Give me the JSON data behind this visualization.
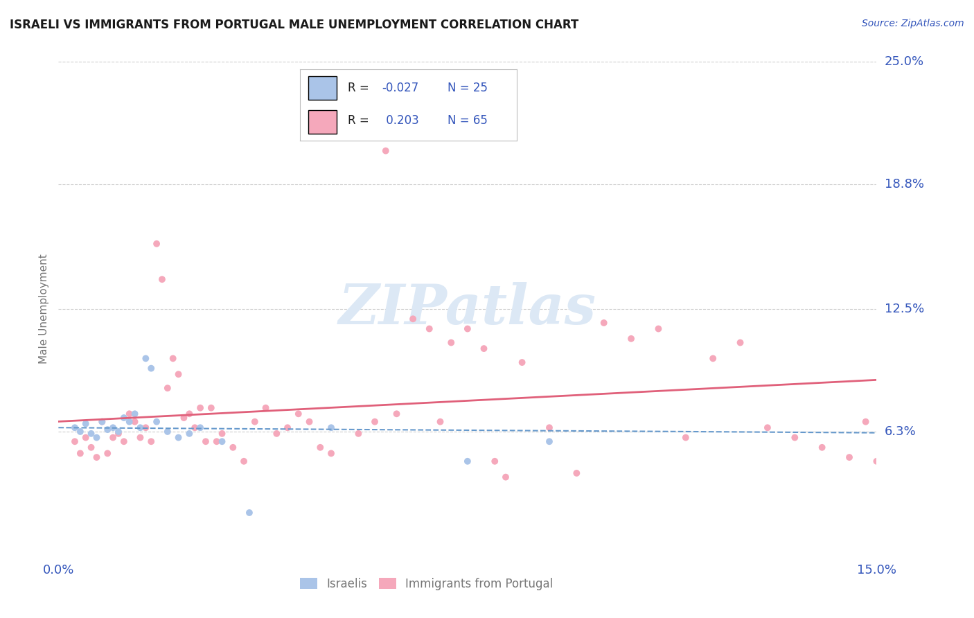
{
  "title": "ISRAELI VS IMMIGRANTS FROM PORTUGAL MALE UNEMPLOYMENT CORRELATION CHART",
  "source": "Source: ZipAtlas.com",
  "ylabel": "Male Unemployment",
  "xlim": [
    0.0,
    0.15
  ],
  "ylim": [
    0.0,
    0.25
  ],
  "ytick_labels": [
    "6.3%",
    "12.5%",
    "18.8%",
    "25.0%"
  ],
  "ytick_values": [
    0.063,
    0.125,
    0.188,
    0.25
  ],
  "xtick_labels": [
    "0.0%",
    "15.0%"
  ],
  "xtick_values": [
    0.0,
    0.15
  ],
  "color_israeli": "#aac4e8",
  "color_portugal": "#f5a8bb",
  "color_trend_israeli": "#6699cc",
  "color_trend_portugal": "#e0607a",
  "color_blue": "#3355bb",
  "color_grey_text": "#777777",
  "background_color": "#ffffff",
  "r_israeli": -0.027,
  "n_israeli": 25,
  "r_portugal": 0.203,
  "n_portugal": 65,
  "israeli_x": [
    0.003,
    0.004,
    0.005,
    0.006,
    0.007,
    0.008,
    0.009,
    0.01,
    0.011,
    0.012,
    0.013,
    0.014,
    0.015,
    0.016,
    0.017,
    0.018,
    0.02,
    0.022,
    0.024,
    0.026,
    0.03,
    0.035,
    0.05,
    0.075,
    0.09
  ],
  "israeli_y": [
    0.065,
    0.063,
    0.067,
    0.062,
    0.06,
    0.068,
    0.064,
    0.065,
    0.063,
    0.07,
    0.068,
    0.072,
    0.065,
    0.1,
    0.095,
    0.068,
    0.063,
    0.06,
    0.062,
    0.065,
    0.058,
    0.022,
    0.065,
    0.048,
    0.058
  ],
  "portugal_x": [
    0.003,
    0.004,
    0.005,
    0.006,
    0.007,
    0.008,
    0.009,
    0.01,
    0.011,
    0.012,
    0.013,
    0.014,
    0.015,
    0.016,
    0.017,
    0.018,
    0.019,
    0.02,
    0.021,
    0.022,
    0.023,
    0.024,
    0.025,
    0.026,
    0.027,
    0.028,
    0.029,
    0.03,
    0.032,
    0.034,
    0.036,
    0.038,
    0.04,
    0.042,
    0.044,
    0.046,
    0.048,
    0.05,
    0.055,
    0.06,
    0.065,
    0.07,
    0.075,
    0.08,
    0.085,
    0.09,
    0.095,
    0.1,
    0.105,
    0.11,
    0.115,
    0.12,
    0.125,
    0.13,
    0.135,
    0.14,
    0.145,
    0.148,
    0.15,
    0.058,
    0.062,
    0.068,
    0.072,
    0.078,
    0.082
  ],
  "portugal_y": [
    0.058,
    0.052,
    0.06,
    0.055,
    0.05,
    0.068,
    0.052,
    0.06,
    0.062,
    0.058,
    0.072,
    0.068,
    0.06,
    0.065,
    0.058,
    0.158,
    0.14,
    0.085,
    0.1,
    0.092,
    0.07,
    0.072,
    0.065,
    0.075,
    0.058,
    0.075,
    0.058,
    0.062,
    0.055,
    0.048,
    0.068,
    0.075,
    0.062,
    0.065,
    0.072,
    0.068,
    0.055,
    0.052,
    0.062,
    0.205,
    0.12,
    0.068,
    0.115,
    0.048,
    0.098,
    0.065,
    0.042,
    0.118,
    0.11,
    0.115,
    0.06,
    0.1,
    0.108,
    0.065,
    0.06,
    0.055,
    0.05,
    0.068,
    0.048,
    0.068,
    0.072,
    0.115,
    0.108,
    0.105,
    0.04
  ]
}
